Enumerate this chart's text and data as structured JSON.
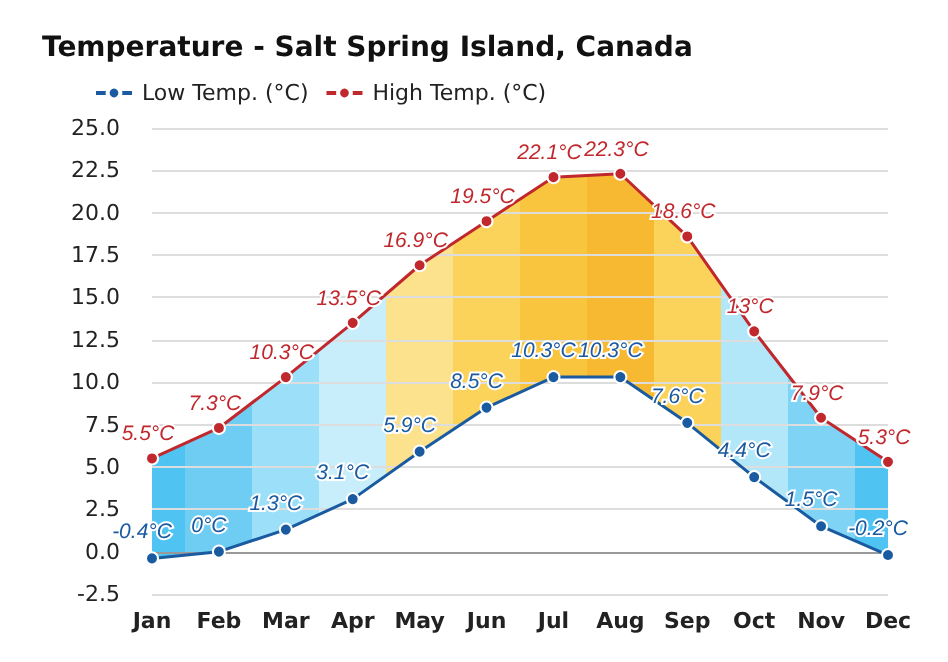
{
  "chart_data": {
    "type": "line",
    "title": "Temperature - Salt Spring Island, Canada",
    "categories": [
      "Jan",
      "Feb",
      "Mar",
      "Apr",
      "May",
      "Jun",
      "Jul",
      "Aug",
      "Sep",
      "Oct",
      "Nov",
      "Dec"
    ],
    "series": [
      {
        "name": "Low Temp. (°C)",
        "color": "#1a5aa0",
        "values": [
          -0.4,
          0,
          1.3,
          3.1,
          5.9,
          8.5,
          10.3,
          10.3,
          7.6,
          4.4,
          1.5,
          -0.2
        ],
        "value_labels": [
          "-0.4°C",
          "0°C",
          "1.3°C",
          "3.1°C",
          "5.9°C",
          "8.5°C",
          "10.3°C",
          "10.3°C",
          "7.6°C",
          "4.4°C",
          "1.5°C",
          "-0.2°C"
        ]
      },
      {
        "name": "High Temp. (°C)",
        "color": "#c0282d",
        "values": [
          5.5,
          7.3,
          10.3,
          13.5,
          16.9,
          19.5,
          22.1,
          22.3,
          18.6,
          13,
          7.9,
          5.3
        ],
        "value_labels": [
          "5.5°C",
          "7.3°C",
          "10.3°C",
          "13.5°C",
          "16.9°C",
          "19.5°C",
          "22.1°C",
          "22.3°C",
          "18.6°C",
          "13°C",
          "7.9°C",
          "5.3°C"
        ]
      }
    ],
    "ylim": [
      -2.5,
      25
    ],
    "yticks": [
      {
        "value": -2.5,
        "label": "-2.5"
      },
      {
        "value": 0,
        "label": "0.0"
      },
      {
        "value": 2.5,
        "label": "2.5"
      },
      {
        "value": 5,
        "label": "5.0"
      },
      {
        "value": 7.5,
        "label": "7.5"
      },
      {
        "value": 10,
        "label": "10.0"
      },
      {
        "value": 12.5,
        "label": "12.5"
      },
      {
        "value": 15,
        "label": "15.0"
      },
      {
        "value": 17.5,
        "label": "17.5"
      },
      {
        "value": 20,
        "label": "20.0"
      },
      {
        "value": 22.5,
        "label": "22.5"
      },
      {
        "value": 25,
        "label": "25.0"
      }
    ],
    "grid": "y",
    "legend": "top left",
    "marker": "circle",
    "line_style": "solid"
  }
}
